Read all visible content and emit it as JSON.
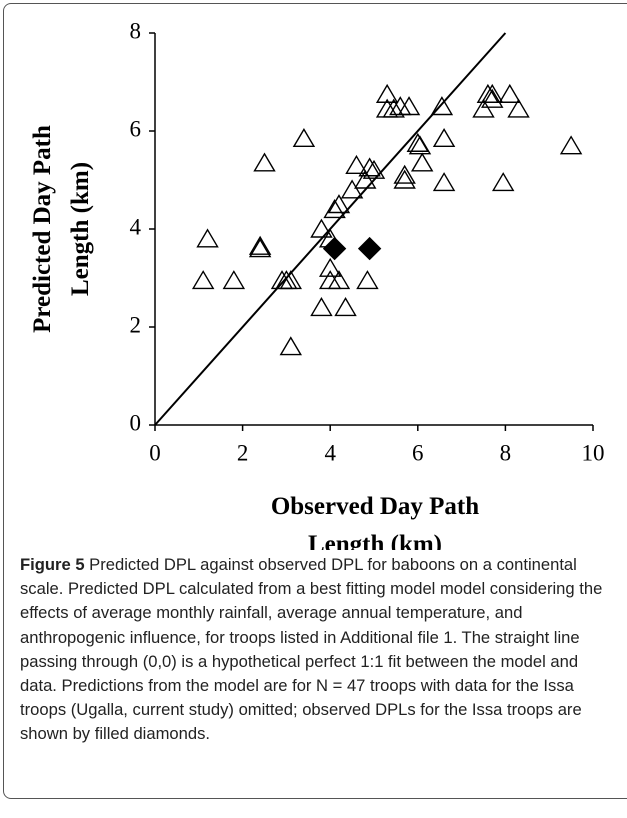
{
  "chart_data": {
    "type": "scatter",
    "xlabel": [
      "Observed Day Path",
      "Length (km)"
    ],
    "ylabel": [
      "Predicted Day Path",
      "Length (km)"
    ],
    "xlim": [
      0,
      10
    ],
    "ylim": [
      0,
      8
    ],
    "xticks": [
      0,
      2,
      4,
      6,
      8,
      10
    ],
    "yticks": [
      0,
      2,
      4,
      6,
      8
    ],
    "series": [
      {
        "marker": "triangle",
        "color": "#000000",
        "x": [
          1.1,
          1.2,
          1.8,
          2.4,
          2.4,
          2.5,
          2.9,
          3.0,
          3.1,
          3.1,
          3.4,
          3.8,
          3.8,
          4.0,
          4.0,
          4.0,
          4.1,
          4.2,
          4.2,
          4.35,
          4.5,
          4.6,
          4.8,
          4.85,
          4.9,
          5.0,
          5.3,
          5.3,
          5.45,
          5.6,
          5.7,
          5.7,
          5.8,
          6.0,
          6.05,
          6.1,
          6.55,
          6.6,
          6.6,
          7.5,
          7.6,
          7.7,
          7.7,
          7.95,
          8.1,
          8.3,
          9.5
        ],
        "y": [
          2.95,
          3.8,
          2.95,
          3.65,
          3.6,
          5.35,
          2.95,
          2.95,
          1.6,
          2.95,
          5.85,
          2.4,
          4.0,
          2.95,
          3.2,
          3.8,
          4.4,
          4.5,
          2.95,
          2.4,
          4.8,
          5.3,
          5.0,
          2.95,
          5.25,
          5.2,
          6.75,
          6.45,
          6.45,
          6.5,
          5.0,
          5.1,
          6.5,
          5.75,
          5.7,
          5.35,
          6.5,
          5.85,
          4.95,
          6.45,
          6.75,
          6.65,
          6.75,
          4.95,
          6.75,
          6.45,
          5.7
        ]
      },
      {
        "marker": "diamond",
        "color": "#000000",
        "x": [
          4.1,
          4.9
        ],
        "y": [
          3.6,
          3.6
        ]
      }
    ],
    "reference_line": {
      "x": [
        0,
        8
      ],
      "y": [
        0,
        8
      ]
    }
  },
  "caption": {
    "label": "Figure 5",
    "text": "Predicted DPL against observed DPL for baboons on a continental scale. Predicted DPL calculated from a best fitting model model considering the effects of average monthly rainfall, average annual temperature, and anthropogenic influence, for troops listed in Additional file 1. The straight line passing through (0,0) is a hypothetical perfect 1:1 fit between the model and data. Predictions from the model are for N = 47 troops with data for the Issa troops (Ugalla, current study) omitted; observed DPLs for the Issa troops are shown by filled diamonds."
  }
}
